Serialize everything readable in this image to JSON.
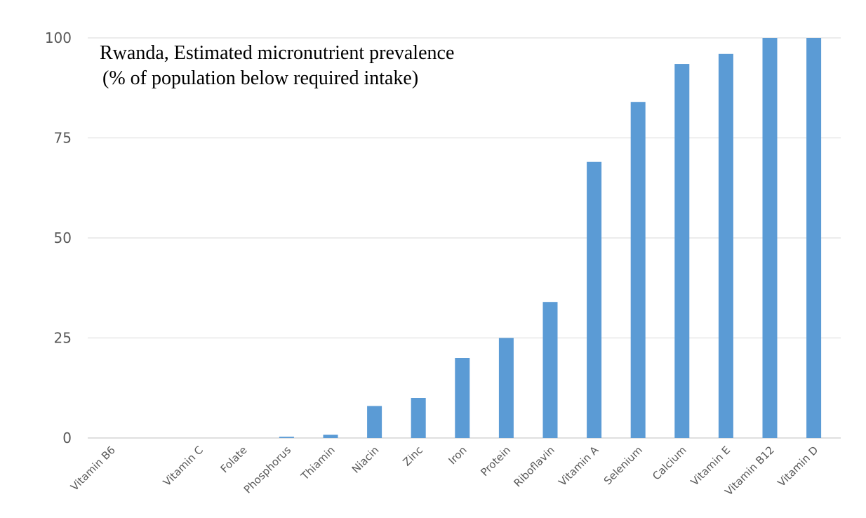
{
  "chart_data": {
    "type": "bar",
    "title": "Rwanda, Estimated micronutrient prevalence",
    "subtitle": "(% of population below required intake)",
    "xlabel": "",
    "ylabel": "",
    "ylim": [
      0,
      100
    ],
    "yticks": [
      0,
      25,
      50,
      75,
      100
    ],
    "grid": true,
    "categories": [
      "Vitamin B6",
      "",
      "Vitamin C",
      "Folate",
      "Phosphorus",
      "Thiamin",
      "Niacin",
      "Zinc",
      "Iron",
      "Protein",
      "Riboflavin",
      "Vitamin A",
      "Selenium",
      "Calcium",
      "Vitamin E",
      "Vitamin B12",
      "Vitamin D"
    ],
    "values": [
      0,
      0,
      0,
      0,
      0.3,
      0.8,
      8,
      10,
      20,
      25,
      34,
      69,
      84,
      93.5,
      96,
      100,
      100
    ],
    "colors": {
      "bar": "#5b9bd5",
      "grid": "#d9d9d9",
      "axis": "#bfbfbf"
    }
  }
}
